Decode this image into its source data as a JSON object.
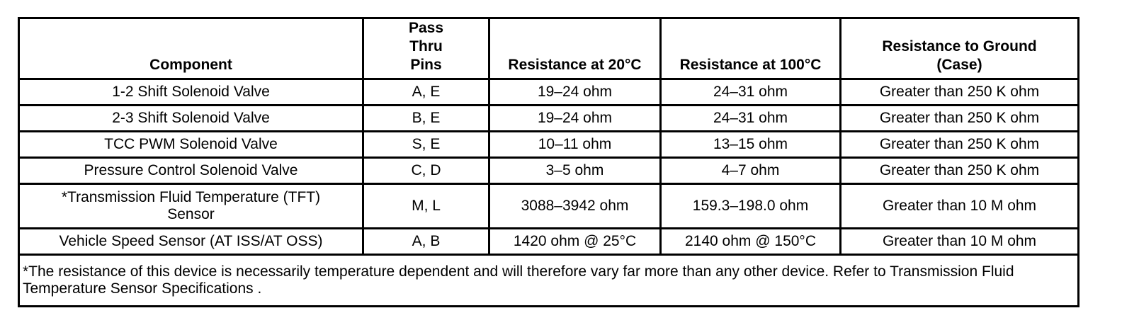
{
  "table": {
    "headers": [
      "Component",
      "Pass Thru Pins",
      "Resistance at 20°C",
      "Resistance at 100°C",
      "Resistance to Ground (Case)"
    ],
    "rows": [
      [
        "1-2 Shift Solenoid Valve",
        "A, E",
        "19–24 ohm",
        "24–31 ohm",
        "Greater than 250 K ohm"
      ],
      [
        "2-3 Shift Solenoid Valve",
        "B, E",
        "19–24 ohm",
        "24–31 ohm",
        "Greater than 250 K ohm"
      ],
      [
        "TCC PWM Solenoid Valve",
        "S, E",
        "10–11 ohm",
        "13–15 ohm",
        "Greater than 250 K ohm"
      ],
      [
        "Pressure Control Solenoid Valve",
        "C, D",
        "3–5 ohm",
        "4–7 ohm",
        "Greater than 250 K ohm"
      ],
      [
        "*Transmission Fluid Temperature (TFT) Sensor",
        "M, L",
        "3088–3942 ohm",
        "159.3–198.0 ohm",
        "Greater than 10 M ohm"
      ],
      [
        "Vehicle Speed Sensor (AT ISS/AT OSS)",
        "A, B",
        "1420 ohm @ 25°C",
        "2140 ohm @ 150°C",
        "Greater than 10 M ohm"
      ]
    ],
    "footnote": "*The resistance of this device is necessarily temperature dependent and will therefore vary far more than any other device. Refer to Transmission Fluid Temperature Sensor Specifications ."
  }
}
